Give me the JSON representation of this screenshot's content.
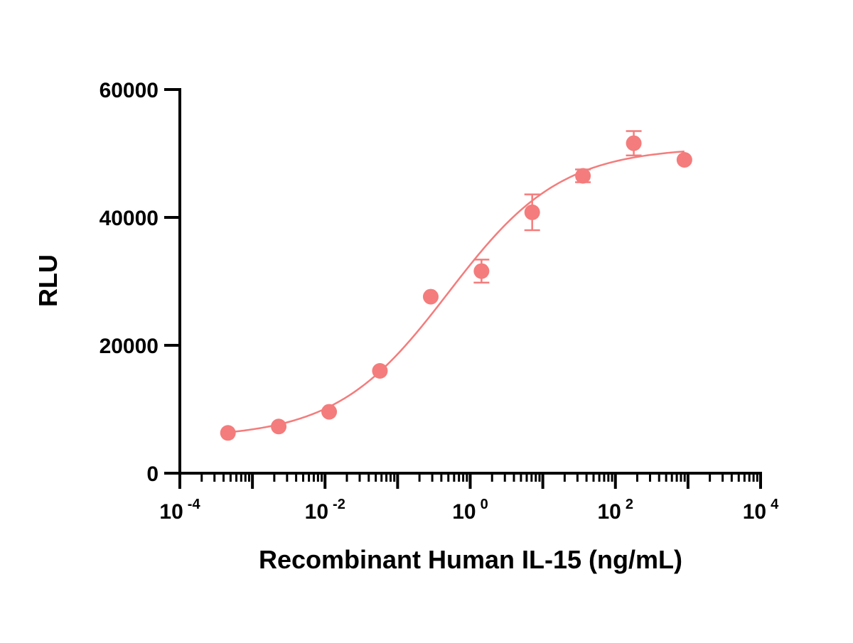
{
  "chart_data": {
    "type": "scatter",
    "xlabel": "Recombinant Human IL-15 (ng/mL)",
    "ylabel": "RLU",
    "x_scale": "log10",
    "xlim": [
      0.0001,
      10000
    ],
    "ylim": [
      0,
      60000
    ],
    "x_ticks": [
      {
        "base": "10",
        "exp": "-4",
        "value": 0.0001
      },
      {
        "base": "10",
        "exp": "-2",
        "value": 0.01
      },
      {
        "base": "10",
        "exp": "0",
        "value": 1
      },
      {
        "base": "10",
        "exp": "2",
        "value": 100
      },
      {
        "base": "10",
        "exp": "4",
        "value": 10000
      }
    ],
    "y_ticks": [
      {
        "label": "0",
        "value": 0
      },
      {
        "label": "20000",
        "value": 20000
      },
      {
        "label": "40000",
        "value": 40000
      },
      {
        "label": "60000",
        "value": 60000
      }
    ],
    "grid": false,
    "color": "#f47c7c",
    "points": [
      {
        "x": 0.00046,
        "y": 6300,
        "err": 0
      },
      {
        "x": 0.0023,
        "y": 7300,
        "err": 0
      },
      {
        "x": 0.0114,
        "y": 9600,
        "err": 0
      },
      {
        "x": 0.057,
        "y": 16000,
        "err": 0
      },
      {
        "x": 0.286,
        "y": 27600,
        "err": 0
      },
      {
        "x": 1.43,
        "y": 31600,
        "err": 1800
      },
      {
        "x": 7.14,
        "y": 40800,
        "err": 2800
      },
      {
        "x": 35.7,
        "y": 46500,
        "err": 1000
      },
      {
        "x": 179,
        "y": 51600,
        "err": 1900
      },
      {
        "x": 893,
        "y": 49000,
        "err": 0
      }
    ],
    "fit_curve": {
      "model": "4PL",
      "bottom": 5500,
      "top": 51000,
      "log_ec50": -0.3,
      "hill": 0.56
    }
  }
}
